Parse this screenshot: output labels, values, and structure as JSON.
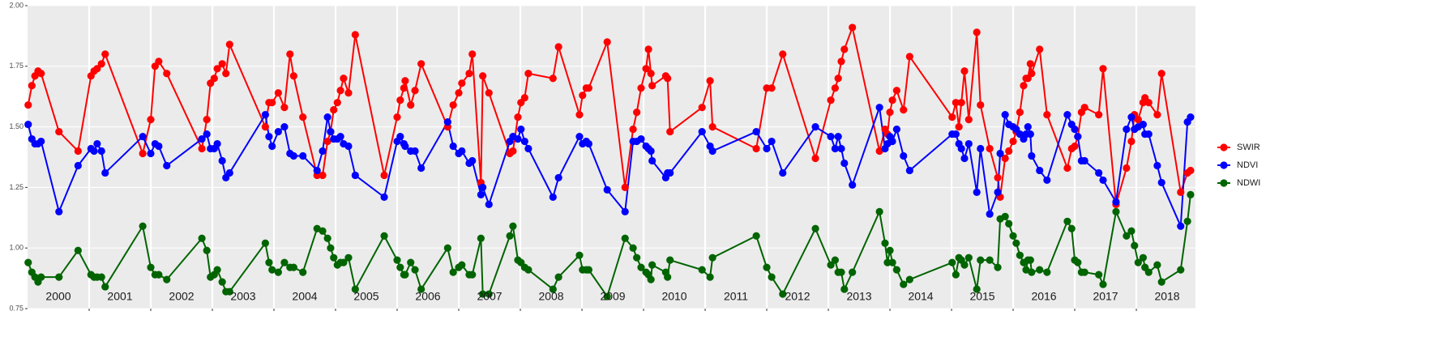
{
  "chart_data": {
    "type": "line",
    "x": [
      2000.01,
      2000.07,
      2000.12,
      2000.17,
      2000.22,
      2000.51,
      2000.82,
      2001.03,
      2001.08,
      2001.13,
      2001.2,
      2001.26,
      2001.87,
      2002.0,
      2002.07,
      2002.13,
      2002.26,
      2002.83,
      2002.91,
      2002.97,
      2003.03,
      2003.08,
      2003.16,
      2003.22,
      2003.28,
      2003.86,
      2003.92,
      2003.97,
      2004.07,
      2004.17,
      2004.26,
      2004.32,
      2004.47,
      2004.7,
      2004.79,
      2004.87,
      2004.92,
      2004.97,
      2005.03,
      2005.08,
      2005.13,
      2005.21,
      2005.32,
      2005.79,
      2006.0,
      2006.05,
      2006.11,
      2006.13,
      2006.22,
      2006.29,
      2006.39,
      2006.82,
      2006.91,
      2007.0,
      2007.05,
      2007.17,
      2007.22,
      2007.36,
      2007.39,
      2007.49,
      2007.83,
      2007.88,
      2007.96,
      2008.01,
      2008.07,
      2008.13,
      2008.53,
      2008.62,
      2008.96,
      2009.01,
      2009.07,
      2009.11,
      2009.41,
      2009.7,
      2009.83,
      2009.89,
      2009.96,
      2010.04,
      2010.08,
      2010.12,
      2010.14,
      2010.36,
      2010.39,
      2010.43,
      2010.95,
      2011.08,
      2011.12,
      2011.83,
      2012.0,
      2012.08,
      2012.26,
      2012.79,
      2013.04,
      2013.11,
      2013.16,
      2013.21,
      2013.26,
      2013.39,
      2013.83,
      2013.92,
      2013.96,
      2014.0,
      2014.04,
      2014.11,
      2014.22,
      2014.32,
      2015.01,
      2015.07,
      2015.12,
      2015.16,
      2015.21,
      2015.28,
      2015.41,
      2015.47,
      2015.62,
      2015.75,
      2015.79,
      2015.87,
      2015.93,
      2016.0,
      2016.05,
      2016.11,
      2016.17,
      2016.21,
      2016.24,
      2016.28,
      2016.3,
      2016.43,
      2016.55,
      2016.88,
      2016.95,
      2017.0,
      2017.05,
      2017.11,
      2017.16,
      2017.39,
      2017.46,
      2017.67,
      2017.84,
      2017.92,
      2017.97,
      2018.03,
      2018.11,
      2018.14,
      2018.2,
      2018.34,
      2018.41,
      2018.72,
      2018.83,
      2018.88
    ],
    "series": [
      {
        "name": "SWIR",
        "color": "#ff0000",
        "values": [
          1.59,
          1.67,
          1.71,
          1.73,
          1.72,
          1.48,
          1.4,
          1.71,
          1.73,
          1.74,
          1.76,
          1.8,
          1.39,
          1.53,
          1.75,
          1.77,
          1.72,
          1.41,
          1.53,
          1.68,
          1.7,
          1.74,
          1.76,
          1.72,
          1.84,
          1.5,
          1.6,
          1.6,
          1.64,
          1.58,
          1.8,
          1.71,
          1.54,
          1.3,
          1.3,
          1.44,
          1.48,
          1.57,
          1.6,
          1.65,
          1.7,
          1.64,
          1.88,
          1.3,
          1.54,
          1.61,
          1.66,
          1.69,
          1.59,
          1.65,
          1.76,
          1.5,
          1.59,
          1.64,
          1.68,
          1.72,
          1.8,
          1.27,
          1.71,
          1.64,
          1.39,
          1.4,
          1.54,
          1.6,
          1.62,
          1.72,
          1.7,
          1.83,
          1.55,
          1.63,
          1.66,
          1.66,
          1.85,
          1.25,
          1.49,
          1.56,
          1.66,
          1.74,
          1.82,
          1.72,
          1.67,
          1.71,
          1.7,
          1.48,
          1.58,
          1.69,
          1.5,
          1.41,
          1.66,
          1.66,
          1.8,
          1.37,
          1.61,
          1.66,
          1.7,
          1.77,
          1.82,
          1.91,
          1.4,
          1.49,
          1.47,
          1.56,
          1.61,
          1.65,
          1.57,
          1.79,
          1.54,
          1.6,
          1.5,
          1.6,
          1.73,
          1.53,
          1.89,
          1.59,
          1.41,
          1.29,
          1.21,
          1.37,
          1.4,
          1.44,
          1.48,
          1.56,
          1.67,
          1.7,
          1.7,
          1.76,
          1.72,
          1.82,
          1.55,
          1.33,
          1.41,
          1.42,
          1.46,
          1.56,
          1.58,
          1.55,
          1.74,
          1.18,
          1.33,
          1.44,
          1.55,
          1.53,
          1.6,
          1.62,
          1.6,
          1.55,
          1.72,
          1.23,
          1.31,
          1.32
        ]
      },
      {
        "name": "NDVI",
        "color": "#0000ff",
        "values": [
          1.51,
          1.45,
          1.43,
          1.43,
          1.44,
          1.15,
          1.34,
          1.41,
          1.4,
          1.43,
          1.4,
          1.31,
          1.46,
          1.39,
          1.43,
          1.42,
          1.34,
          1.45,
          1.47,
          1.41,
          1.41,
          1.43,
          1.36,
          1.29,
          1.31,
          1.55,
          1.46,
          1.42,
          1.48,
          1.5,
          1.39,
          1.38,
          1.38,
          1.32,
          1.4,
          1.54,
          1.48,
          1.45,
          1.45,
          1.46,
          1.43,
          1.42,
          1.3,
          1.21,
          1.44,
          1.46,
          1.43,
          1.42,
          1.4,
          1.4,
          1.33,
          1.52,
          1.42,
          1.39,
          1.4,
          1.35,
          1.36,
          1.22,
          1.25,
          1.18,
          1.44,
          1.46,
          1.45,
          1.49,
          1.44,
          1.41,
          1.21,
          1.29,
          1.46,
          1.43,
          1.44,
          1.43,
          1.24,
          1.15,
          1.44,
          1.44,
          1.45,
          1.42,
          1.41,
          1.4,
          1.36,
          1.29,
          1.31,
          1.31,
          1.48,
          1.42,
          1.4,
          1.48,
          1.41,
          1.44,
          1.31,
          1.5,
          1.46,
          1.41,
          1.46,
          1.41,
          1.35,
          1.26,
          1.58,
          1.41,
          1.43,
          1.46,
          1.44,
          1.49,
          1.38,
          1.32,
          1.47,
          1.47,
          1.43,
          1.41,
          1.37,
          1.43,
          1.23,
          1.41,
          1.14,
          1.23,
          1.39,
          1.55,
          1.51,
          1.5,
          1.49,
          1.47,
          1.45,
          1.47,
          1.5,
          1.47,
          1.38,
          1.32,
          1.28,
          1.55,
          1.51,
          1.49,
          1.46,
          1.36,
          1.36,
          1.31,
          1.28,
          1.19,
          1.49,
          1.54,
          1.49,
          1.5,
          1.51,
          1.47,
          1.47,
          1.34,
          1.27,
          1.09,
          1.52,
          1.54
        ]
      },
      {
        "name": "NDWI",
        "color": "#006400",
        "values": [
          0.94,
          0.9,
          0.88,
          0.86,
          0.88,
          0.88,
          0.99,
          0.89,
          0.88,
          0.88,
          0.88,
          0.84,
          1.09,
          0.92,
          0.89,
          0.89,
          0.87,
          1.04,
          0.99,
          0.88,
          0.89,
          0.91,
          0.86,
          0.82,
          0.82,
          1.02,
          0.94,
          0.91,
          0.9,
          0.94,
          0.92,
          0.92,
          0.9,
          1.08,
          1.07,
          1.04,
          1.0,
          0.96,
          0.93,
          0.94,
          0.94,
          0.96,
          0.83,
          1.05,
          0.95,
          0.92,
          0.89,
          0.89,
          0.94,
          0.91,
          0.83,
          1.0,
          0.9,
          0.92,
          0.93,
          0.89,
          0.89,
          1.04,
          0.81,
          0.81,
          1.05,
          1.09,
          0.95,
          0.94,
          0.92,
          0.91,
          0.83,
          0.88,
          0.97,
          0.91,
          0.91,
          0.91,
          0.8,
          1.04,
          1.0,
          0.96,
          0.92,
          0.9,
          0.89,
          0.87,
          0.93,
          0.9,
          0.88,
          0.95,
          0.91,
          0.88,
          0.96,
          1.05,
          0.92,
          0.88,
          0.81,
          1.08,
          0.93,
          0.95,
          0.9,
          0.9,
          0.83,
          0.9,
          1.15,
          1.02,
          0.94,
          0.99,
          0.94,
          0.91,
          0.85,
          0.87,
          0.94,
          0.89,
          0.96,
          0.95,
          0.93,
          0.96,
          0.83,
          0.95,
          0.95,
          0.92,
          1.12,
          1.13,
          1.1,
          1.05,
          1.02,
          0.97,
          0.94,
          0.91,
          0.95,
          0.95,
          0.9,
          0.91,
          0.9,
          1.11,
          1.08,
          0.95,
          0.94,
          0.9,
          0.9,
          0.89,
          0.85,
          1.15,
          1.05,
          1.07,
          1.01,
          0.94,
          0.96,
          0.92,
          0.9,
          0.93,
          0.86,
          0.91,
          1.11,
          1.22
        ]
      }
    ],
    "xlim": [
      2000,
      2018.96
    ],
    "ylim": [
      0.75,
      2.0
    ],
    "yticks": [
      0.75,
      {
        "value": 1.0,
        "label": "1.00"
      },
      1.25,
      {
        "value": 1.5,
        "label": "1.50"
      },
      1.75,
      {
        "value": 2.0,
        "label": "2.00"
      }
    ],
    "year_bounds": [
      2001,
      2002,
      2003,
      2004,
      2005,
      2006,
      2007,
      2008,
      2009,
      2010,
      2011,
      2012,
      2013,
      2014,
      2015,
      2016,
      2017,
      2018
    ],
    "year_labels": [
      {
        "value": 2000.5,
        "label": "2000"
      },
      {
        "value": 2001.5,
        "label": "2001"
      },
      {
        "value": 2002.5,
        "label": "2002"
      },
      {
        "value": 2003.5,
        "label": "2003"
      },
      {
        "value": 2004.5,
        "label": "2004"
      },
      {
        "value": 2005.5,
        "label": "2005"
      },
      {
        "value": 2006.5,
        "label": "2006"
      },
      {
        "value": 2007.5,
        "label": "2007"
      },
      {
        "value": 2008.5,
        "label": "2008"
      },
      {
        "value": 2009.5,
        "label": "2009"
      },
      {
        "value": 2010.5,
        "label": "2010"
      },
      {
        "value": 2011.5,
        "label": "2011"
      },
      {
        "value": 2012.5,
        "label": "2012"
      },
      {
        "value": 2013.5,
        "label": "2013"
      },
      {
        "value": 2014.5,
        "label": "2014"
      },
      {
        "value": 2015.5,
        "label": "2015"
      },
      {
        "value": 2016.5,
        "label": "2016"
      },
      {
        "value": 2017.5,
        "label": "2017"
      },
      {
        "value": 2018.5,
        "label": "2018"
      }
    ],
    "grid": true,
    "legend": "right"
  }
}
